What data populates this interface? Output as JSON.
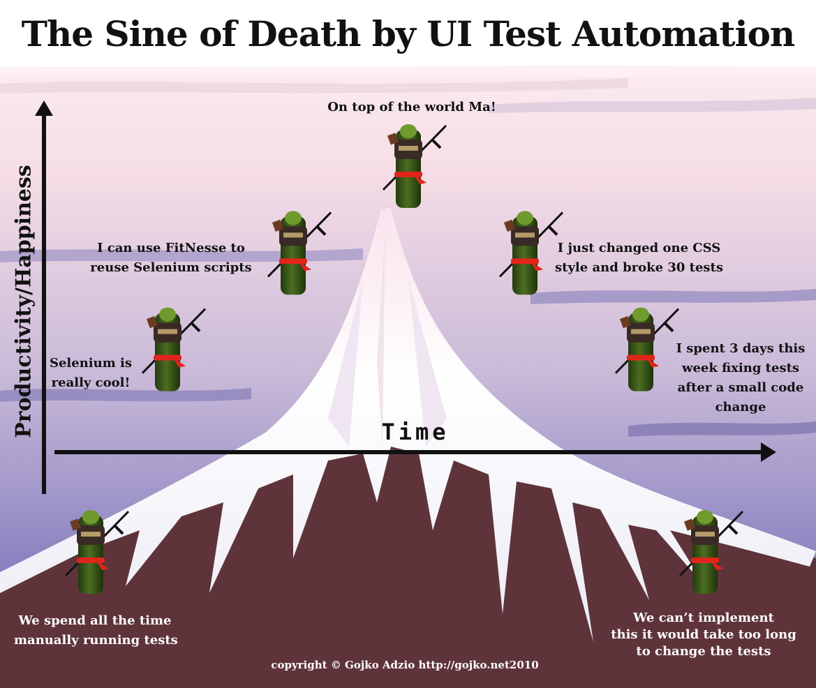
{
  "title": "The Sine of Death by UI Test Automation",
  "axes": {
    "y_label": "Productivity/Happiness",
    "x_label": "Time"
  },
  "stages": [
    {
      "id": "start",
      "caption_lines": [
        "We spend all the time",
        "manually running tests"
      ],
      "happiness": 0.2
    },
    {
      "id": "cool",
      "caption_lines": [
        "Selenium is",
        "really cool!"
      ],
      "happiness": 0.62
    },
    {
      "id": "fitnesse",
      "caption_lines": [
        "I can use FitNesse to",
        "reuse Selenium scripts"
      ],
      "happiness": 0.82
    },
    {
      "id": "top",
      "caption_lines": [
        "On top of the world Ma!"
      ],
      "happiness": 1.0
    },
    {
      "id": "css",
      "caption_lines": [
        "I just changed one CSS",
        "style and broke 30 tests"
      ],
      "happiness": 0.82
    },
    {
      "id": "fixing",
      "caption_lines": [
        "I spent 3 days this",
        "week fixing tests",
        "after a small code",
        "change"
      ],
      "happiness": 0.62
    },
    {
      "id": "end",
      "caption_lines": [
        "We can’t implement",
        "this it would take too long",
        "to change the tests"
      ],
      "happiness": 0.2
    }
  ],
  "copyright": "copyright © Gojko Adzio http://gojko.net2010",
  "colors": {
    "sky_top": "#fbe9ef",
    "sky_bottom": "#7a73b4",
    "mountain": "#5e343a",
    "snow": "#ffffff",
    "cucumber": "#3d5a1b",
    "sash": "#e0251b",
    "ink": "#111111"
  },
  "icons": [
    "ninja-cucumber-icon",
    "katana-icon",
    "axis-arrow-icon"
  ]
}
